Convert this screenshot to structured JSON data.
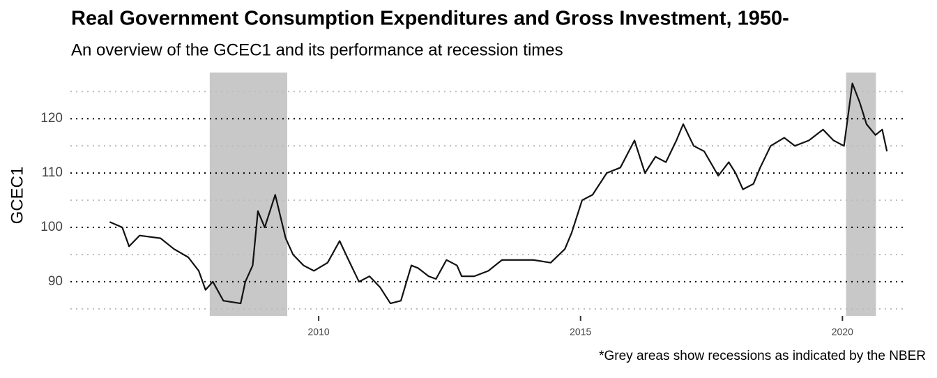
{
  "chart_data": {
    "type": "line",
    "title": "Real Government Consumption Expenditures and Gross Investment, 1950-",
    "subtitle": "An overview of the GCEC1 and its performance at recession times",
    "y_label": "GCEC1",
    "caption": "*Grey areas show recessions as indicated by the NBER",
    "xlim": [
      2005.26,
      2021.22
    ],
    "xticks": [
      2010,
      2015,
      2020
    ],
    "ylim": [
      83.7,
      128.5
    ],
    "yticks": [
      90,
      100,
      110,
      120
    ],
    "y_minor_grid": [
      85,
      95,
      105,
      115,
      125
    ],
    "grid": true,
    "recession_color": "#c8c8c8",
    "recessions": [
      {
        "start": 2007.92,
        "end": 2009.4
      },
      {
        "start": 2020.07,
        "end": 2020.64
      }
    ],
    "series": [
      {
        "name": "GCEC1",
        "color": "#111111",
        "x": [
          2006.01,
          2006.25,
          2006.38,
          2006.58,
          2006.98,
          2007.24,
          2007.51,
          2007.71,
          2007.84,
          2007.98,
          2008.18,
          2008.51,
          2008.6,
          2008.74,
          2008.84,
          2008.97,
          2009.17,
          2009.37,
          2009.51,
          2009.71,
          2009.91,
          2010.17,
          2010.4,
          2010.57,
          2010.77,
          2010.97,
          2011.17,
          2011.37,
          2011.57,
          2011.77,
          2011.9,
          2012.1,
          2012.24,
          2012.44,
          2012.64,
          2012.73,
          2012.97,
          2013.24,
          2013.5,
          2013.77,
          2014.1,
          2014.43,
          2014.7,
          2014.83,
          2015.03,
          2015.23,
          2015.5,
          2015.76,
          2016.03,
          2016.23,
          2016.43,
          2016.63,
          2016.83,
          2016.96,
          2017.16,
          2017.36,
          2017.63,
          2017.83,
          2017.96,
          2018.1,
          2018.3,
          2018.43,
          2018.63,
          2018.89,
          2019.09,
          2019.36,
          2019.63,
          2019.83,
          2020.03,
          2020.19,
          2020.33,
          2020.46,
          2020.63,
          2020.76,
          2020.85
        ],
        "values": [
          101,
          100,
          96.5,
          98.5,
          98,
          96,
          94.5,
          92,
          88.5,
          90,
          86.5,
          86,
          90,
          93,
          103,
          100,
          106,
          98,
          95,
          93,
          92,
          93.5,
          97.5,
          94,
          90,
          91,
          89,
          86,
          86.5,
          93,
          92.5,
          91,
          90.5,
          94,
          93,
          91,
          91,
          92,
          94,
          94,
          94,
          93.5,
          96,
          99,
          105,
          106,
          110,
          111,
          116,
          110,
          113,
          112,
          116,
          119,
          115,
          114,
          109.5,
          112,
          110,
          107,
          108,
          111,
          115,
          116.5,
          115,
          116,
          118,
          116,
          115,
          126.5,
          123,
          119,
          117,
          118,
          114
        ]
      }
    ]
  }
}
